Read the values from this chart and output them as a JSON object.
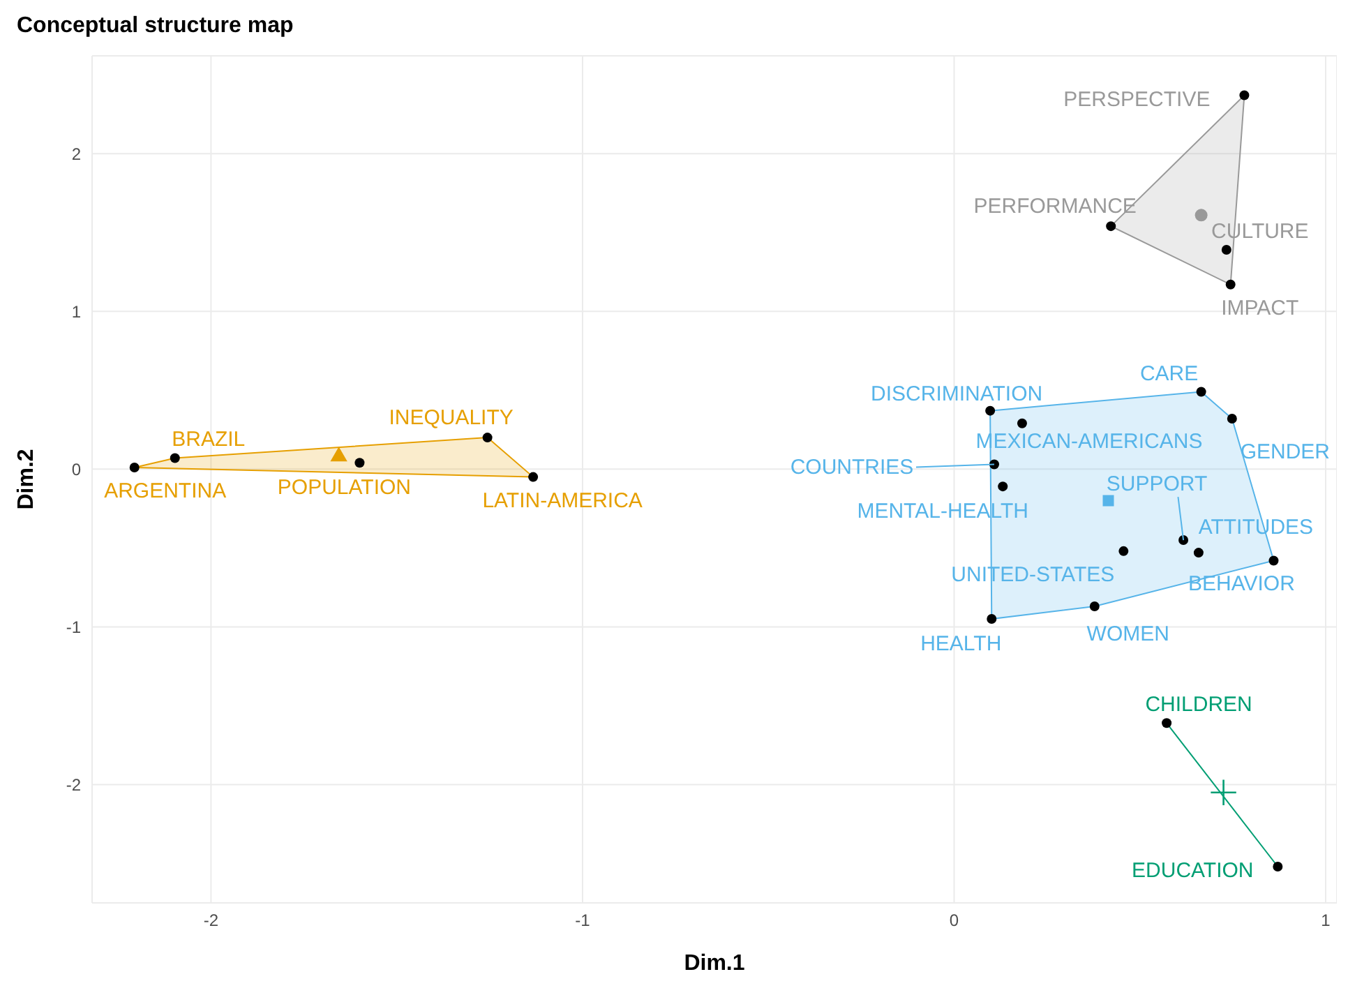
{
  "chart_data": {
    "type": "scatter",
    "title": "Conceptual structure map",
    "xlabel": "Dim.1",
    "ylabel": "Dim.2",
    "xlim": [
      -2.32,
      1.03
    ],
    "ylim": [
      -2.75,
      2.62
    ],
    "xticks": [
      -2,
      -1,
      0,
      1
    ],
    "yticks": [
      -2,
      -1,
      0,
      1,
      2
    ],
    "grid": true,
    "series": [
      {
        "type": "area",
        "color": "#e69f00",
        "x": [
          -2.206,
          -2.097,
          -1.256,
          -1.133,
          -2.206
        ],
        "values": [
          0.01,
          0.07,
          0.2,
          -0.05,
          0.01
        ]
      },
      {
        "type": "scatter",
        "color": "#000000",
        "marker": "circle",
        "x": [
          -2.206,
          -2.097,
          -1.6,
          -1.256,
          -1.133
        ],
        "values": [
          0.01,
          0.07,
          0.04,
          0.2,
          -0.05
        ],
        "value_labels": [
          "ARGENTINA",
          "BRAZIL",
          "POPULATION",
          "INEQUALITY",
          "LATIN-AMERICA"
        ]
      },
      {
        "color": "#e69f00",
        "marker": "triangle",
        "x": [
          -1.656
        ],
        "values": [
          0.08
        ]
      },
      {
        "type": "area",
        "color": "#999999",
        "x": [
          0.781,
          0.744,
          0.422,
          0.781
        ],
        "values": [
          2.37,
          1.17,
          1.54,
          2.37
        ]
      },
      {
        "type": "scatter",
        "color": "#000000",
        "marker": "circle",
        "x": [
          0.781,
          0.422,
          0.733,
          0.744
        ],
        "values": [
          2.37,
          1.54,
          1.39,
          1.17
        ],
        "value_labels": [
          "PERSPECTIVE",
          "PERFORMANCE",
          "CULTURE",
          "IMPACT"
        ]
      },
      {
        "color": "#999999",
        "marker": "circle",
        "x": [
          0.665
        ],
        "values": [
          1.61
        ]
      },
      {
        "type": "area",
        "color": "#56b4e9",
        "x": [
          0.097,
          0.665,
          0.748,
          0.86,
          0.378,
          0.101,
          0.097
        ],
        "values": [
          0.37,
          0.49,
          0.32,
          -0.58,
          -0.87,
          -0.95,
          0.37
        ]
      },
      {
        "type": "scatter",
        "color": "#000000",
        "marker": "circle",
        "x": [
          0.097,
          0.183,
          0.108,
          0.131,
          0.665,
          0.748,
          0.617,
          0.658,
          0.86,
          0.456,
          0.378,
          0.101
        ],
        "values": [
          0.37,
          0.29,
          0.03,
          -0.11,
          0.49,
          0.32,
          -0.45,
          -0.53,
          -0.58,
          -0.52,
          -0.87,
          -0.95
        ],
        "value_labels": [
          "DISCRIMINATION",
          "MEXICAN-AMERICANS",
          "COUNTRIES",
          "MENTAL-HEALTH",
          "CARE",
          "GENDER",
          "SUPPORT",
          "ATTITUDES",
          "BEHAVIOR",
          "UNITED-STATES",
          "WOMEN",
          "HEALTH"
        ]
      },
      {
        "color": "#56b4e9",
        "marker": "square",
        "x": [
          0.415
        ],
        "values": [
          -0.2
        ]
      },
      {
        "type": "line",
        "color": "#009e73",
        "x": [
          0.572,
          0.871
        ],
        "values": [
          -1.61,
          -2.52
        ]
      },
      {
        "type": "scatter",
        "color": "#000000",
        "marker": "circle",
        "x": [
          0.572,
          0.871
        ],
        "values": [
          -1.61,
          -2.52
        ],
        "value_labels": [
          "CHILDREN",
          "EDUCATION"
        ]
      },
      {
        "color": "#009e73",
        "marker": "cross",
        "x": [
          0.725
        ],
        "values": [
          -2.05
        ]
      }
    ]
  }
}
